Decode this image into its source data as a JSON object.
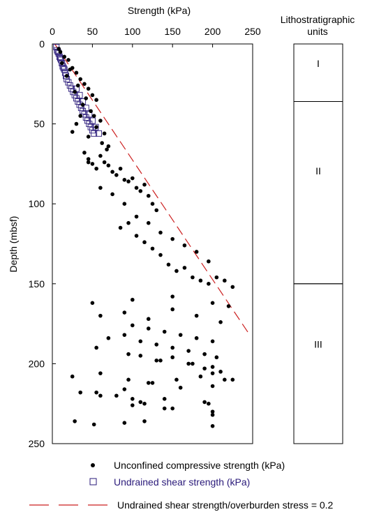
{
  "colors": {
    "ucs": "#000000",
    "shear": "#2a1a7a",
    "ratio_line": "#cc1f1f"
  },
  "chart_data": {
    "type": "scatter",
    "title": "",
    "xlabel": "Strength (kPa)",
    "ylabel": "Depth (mbsf)",
    "xlim": [
      0,
      250
    ],
    "ylim": [
      250,
      0
    ],
    "xticks": [
      "0",
      "50",
      "100",
      "150",
      "200",
      "250"
    ],
    "yticks": [
      "0",
      "50",
      "100",
      "150",
      "200",
      "250"
    ],
    "grid": false,
    "legend_position": "bottom",
    "series": [
      {
        "name": "Unconfined compressive strength (kPa)",
        "marker": "filled-circle",
        "x": [
          10,
          15,
          20,
          25,
          30,
          35,
          40,
          45,
          50,
          55,
          12,
          18,
          28,
          38,
          48,
          8,
          22,
          32,
          42,
          52,
          25,
          30,
          35,
          45,
          55,
          60,
          62,
          65,
          68,
          70,
          40,
          45,
          50,
          55,
          60,
          65,
          70,
          75,
          80,
          85,
          90,
          95,
          100,
          105,
          110,
          115,
          120,
          125,
          130,
          45,
          60,
          75,
          90,
          105,
          120,
          135,
          150,
          165,
          180,
          195,
          85,
          95,
          105,
          115,
          125,
          135,
          145,
          155,
          165,
          175,
          185,
          195,
          205,
          215,
          225,
          50,
          100,
          150,
          200,
          220,
          60,
          90,
          120,
          150,
          180,
          210,
          100,
          120,
          140,
          160,
          180,
          200,
          70,
          90,
          110,
          130,
          150,
          170,
          190,
          205,
          55,
          95,
          135,
          175,
          200,
          110,
          130,
          150,
          170,
          190,
          210,
          25,
          60,
          95,
          125,
          155,
          185,
          200,
          120,
          160,
          200,
          215,
          35,
          80,
          140,
          190,
          100,
          150,
          200,
          225,
          55,
          60,
          90,
          100,
          110,
          115,
          140,
          195,
          200,
          28,
          52,
          90,
          115,
          200
        ],
        "y": [
          5,
          8,
          10,
          15,
          18,
          22,
          25,
          28,
          32,
          35,
          12,
          20,
          30,
          38,
          42,
          3,
          16,
          26,
          34,
          45,
          55,
          50,
          45,
          58,
          52,
          48,
          62,
          56,
          66,
          64,
          68,
          72,
          75,
          78,
          70,
          74,
          76,
          80,
          82,
          78,
          85,
          86,
          84,
          90,
          92,
          88,
          95,
          100,
          104,
          74,
          90,
          94,
          100,
          108,
          112,
          118,
          122,
          126,
          130,
          136,
          115,
          112,
          120,
          124,
          128,
          132,
          138,
          142,
          140,
          146,
          148,
          150,
          146,
          148,
          152,
          162,
          160,
          158,
          162,
          164,
          170,
          168,
          172,
          166,
          170,
          174,
          176,
          178,
          180,
          182,
          184,
          186,
          184,
          182,
          186,
          188,
          190,
          192,
          194,
          196,
          190,
          194,
          198,
          200,
          202,
          195,
          198,
          196,
          200,
          203,
          205,
          208,
          206,
          210,
          212,
          210,
          208,
          206,
          212,
          215,
          214,
          210,
          218,
          220,
          222,
          224,
          226,
          228,
          230,
          210,
          218,
          220,
          216,
          222,
          224,
          225,
          228,
          225,
          232,
          236,
          238,
          237,
          236,
          239
        ]
      },
      {
        "name": "Undrained shear strength (kPa)",
        "marker": "open-square",
        "x": [
          5,
          6,
          7,
          8,
          9,
          10,
          11,
          12,
          13,
          14,
          15,
          16,
          17,
          18,
          20,
          22,
          24,
          26,
          28,
          30,
          32,
          34,
          36,
          38,
          40,
          42,
          44,
          46,
          48,
          50,
          52,
          30,
          34,
          38,
          42,
          46,
          50,
          54,
          58
        ],
        "y": [
          2,
          4,
          5,
          6,
          8,
          9,
          10,
          12,
          14,
          15,
          16,
          18,
          20,
          22,
          24,
          26,
          28,
          30,
          32,
          34,
          36,
          38,
          40,
          42,
          44,
          46,
          48,
          50,
          52,
          54,
          56,
          28,
          32,
          36,
          40,
          44,
          48,
          52,
          56
        ]
      },
      {
        "name": "Undrained shear strength/overburden stress = 0.2",
        "line": "dashed",
        "x": [
          3,
          245
        ],
        "y": [
          0,
          181
        ]
      }
    ],
    "units_panel": {
      "title_line1": "Lithostratigraphic",
      "title_line2": "units",
      "units": [
        {
          "label": "I",
          "top": 0,
          "bottom": 36
        },
        {
          "label": "II",
          "top": 36,
          "bottom": 150
        },
        {
          "label": "III",
          "top": 150,
          "bottom": 250
        }
      ]
    }
  }
}
